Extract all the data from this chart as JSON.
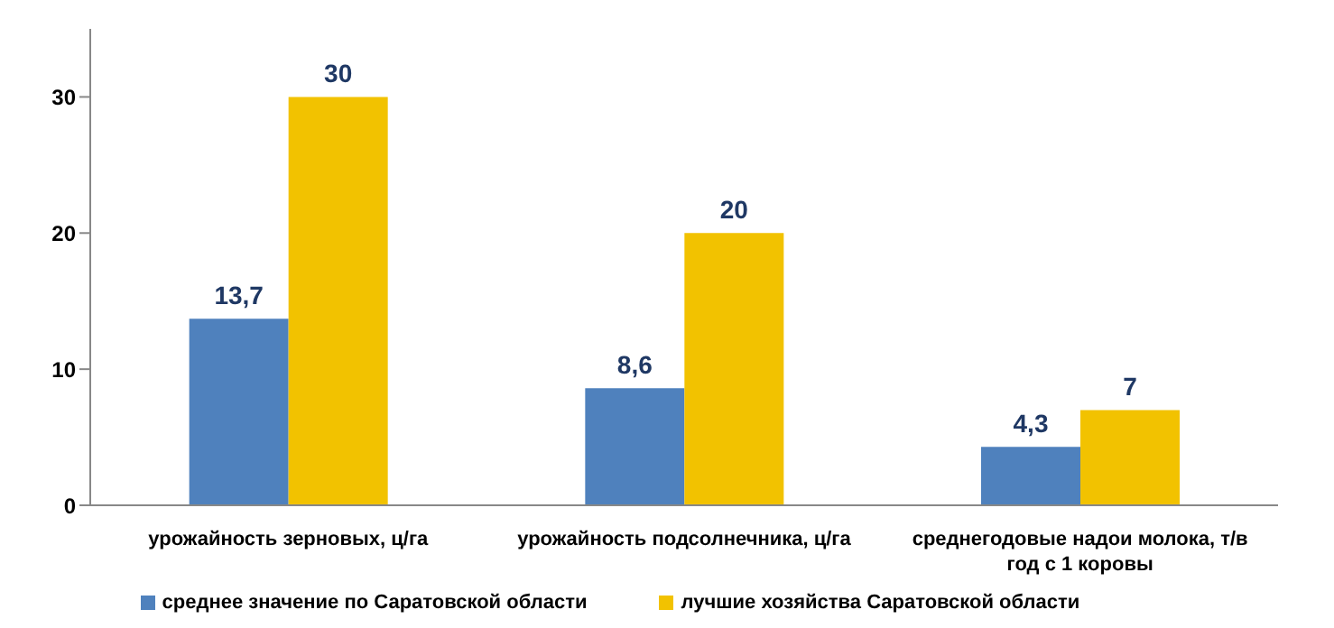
{
  "chart_data": {
    "type": "bar",
    "categories": [
      "урожайность  зерновых, ц/га",
      "урожайность  подсолнечника,  ц/га",
      "среднегодовые надои молока, т/в год с 1 коровы"
    ],
    "series": [
      {
        "name": "среднее значение по Саратовской  области",
        "color": "#4f81bd",
        "values": [
          13.7,
          8.6,
          4.3
        ],
        "value_labels": [
          "13,7",
          "8,6",
          "4,3"
        ]
      },
      {
        "name": "лучшие хозяйства  Саратовской  области",
        "color": "#f2c200",
        "values": [
          30,
          20,
          7
        ],
        "value_labels": [
          "30",
          "20",
          "7"
        ]
      }
    ],
    "ylim": [
      0,
      35
    ],
    "yticks": [
      0,
      10,
      20,
      30
    ],
    "grid": false,
    "legend": "bottom"
  }
}
